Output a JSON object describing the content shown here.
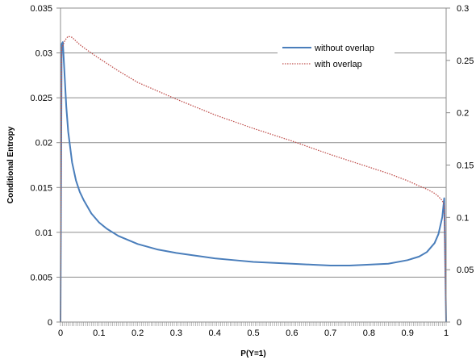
{
  "chart_data": {
    "type": "line",
    "title": "",
    "xlabel": "P(Y=1)",
    "ylabel": "Conditional Entropy",
    "y2label": "",
    "xlim": [
      0,
      1
    ],
    "ylim": [
      0,
      0.035
    ],
    "y2lim": [
      0,
      0.3
    ],
    "x_ticks": [
      "0",
      "0.1",
      "0.2",
      "0.3",
      "0.4",
      "0.5",
      "0.6",
      "0.7",
      "0.8",
      "0.9",
      "1"
    ],
    "y_ticks": [
      "0",
      "0.005",
      "0.01",
      "0.015",
      "0.02",
      "0.025",
      "0.03",
      "0.035"
    ],
    "y2_ticks": [
      "0",
      "0.05",
      "0.1",
      "0.15",
      "0.2",
      "0.25",
      "0.3"
    ],
    "grid": "horizontal",
    "legend_position": "top-right",
    "series": [
      {
        "name": "without overlap",
        "axis": "left",
        "color": "#4a7ebb",
        "style": "solid",
        "x": [
          0,
          0.003,
          0.006,
          0.01,
          0.015,
          0.02,
          0.03,
          0.04,
          0.05,
          0.06,
          0.08,
          0.1,
          0.12,
          0.15,
          0.2,
          0.25,
          0.3,
          0.35,
          0.4,
          0.45,
          0.5,
          0.55,
          0.6,
          0.65,
          0.7,
          0.75,
          0.8,
          0.85,
          0.9,
          0.93,
          0.95,
          0.97,
          0.98,
          0.99,
          0.995,
          1.0
        ],
        "y": [
          0,
          0.031,
          0.0312,
          0.028,
          0.024,
          0.0212,
          0.0178,
          0.0158,
          0.0145,
          0.0136,
          0.0121,
          0.0111,
          0.0104,
          0.0096,
          0.0087,
          0.0081,
          0.0077,
          0.0074,
          0.0071,
          0.0069,
          0.0067,
          0.0066,
          0.0065,
          0.0064,
          0.0063,
          0.0063,
          0.0064,
          0.0065,
          0.0069,
          0.0073,
          0.0078,
          0.0088,
          0.0098,
          0.0117,
          0.0138,
          0
        ]
      },
      {
        "name": "with overlap",
        "axis": "right",
        "color": "#c0504d",
        "style": "dotted",
        "x": [
          0,
          0.003,
          0.006,
          0.01,
          0.015,
          0.02,
          0.03,
          0.05,
          0.08,
          0.1,
          0.15,
          0.2,
          0.3,
          0.4,
          0.5,
          0.6,
          0.7,
          0.8,
          0.85,
          0.9,
          0.93,
          0.95,
          0.97,
          0.98,
          0.99,
          0.995,
          1.0
        ],
        "y": [
          0,
          0.262,
          0.264,
          0.268,
          0.271,
          0.273,
          0.272,
          0.265,
          0.257,
          0.252,
          0.24,
          0.229,
          0.213,
          0.198,
          0.185,
          0.173,
          0.16,
          0.148,
          0.142,
          0.135,
          0.13,
          0.127,
          0.123,
          0.12,
          0.116,
          0.112,
          0
        ]
      }
    ]
  }
}
